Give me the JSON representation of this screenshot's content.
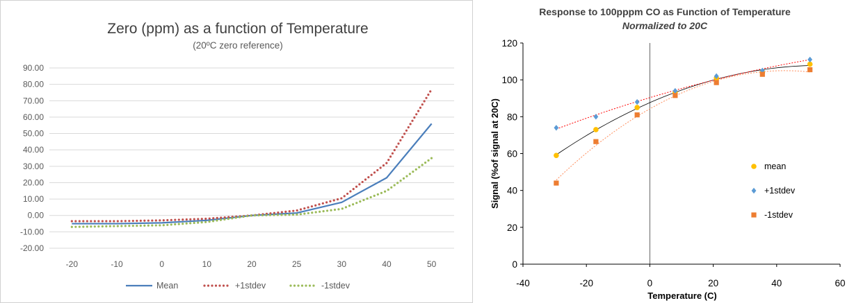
{
  "colors": {
    "mean_line": "#4a7ebb",
    "plus_line": "#c0504d",
    "minus_line": "#9bbb59",
    "grid": "#d9d9d9",
    "tick_text": "#595959",
    "title_text": "#404040",
    "mean_point": "#ffc000",
    "plus_point": "#5b9bd5",
    "minus_point": "#ed7d31",
    "mean_trend": "#000000",
    "plus_trend": "#ff0000",
    "minus_trend": "#ff8c5a"
  },
  "chart_data": [
    {
      "type": "line",
      "title": "Zero (ppm) as a function of Temperature",
      "subtitle": "(20ºC zero reference)",
      "xlabel": "",
      "ylabel": "",
      "categories": [
        "-20",
        "-10",
        "0",
        "10",
        "20",
        "25",
        "30",
        "40",
        "50"
      ],
      "ylim": [
        -20,
        90
      ],
      "yticks": [
        "90.00",
        "80.00",
        "70.00",
        "60.00",
        "50.00",
        "40.00",
        "30.00",
        "20.00",
        "10.00",
        "0.00",
        "-10.00",
        "-20.00"
      ],
      "grid": true,
      "legend_position": "bottom",
      "series": [
        {
          "name": "Mean",
          "style": "solid",
          "values": [
            -5,
            -5,
            -4.5,
            -3,
            0,
            1.5,
            8,
            23,
            56
          ]
        },
        {
          "name": "+1stdev",
          "style": "dotted",
          "values": [
            -3.5,
            -3.5,
            -3,
            -2,
            0,
            3,
            10.5,
            32,
            77
          ]
        },
        {
          "name": "-1stdev",
          "style": "dotted",
          "values": [
            -7,
            -6.5,
            -6,
            -4,
            0,
            0.5,
            4,
            15,
            35
          ]
        }
      ]
    },
    {
      "type": "scatter",
      "title": "Response to 100pppm CO  as Function of Temperature",
      "subtitle": "Normalized to 20C",
      "xlabel": "Temperature (C)",
      "ylabel": "Signal (%of signal at 20C)",
      "xlim": [
        -40,
        60
      ],
      "ylim": [
        0,
        120
      ],
      "xticks": [
        "-40",
        "-20",
        "0",
        "20",
        "40",
        "60"
      ],
      "yticks": [
        "0",
        "20",
        "40",
        "60",
        "80",
        "100",
        "120"
      ],
      "grid": false,
      "legend_position": "right",
      "series": [
        {
          "name": "mean",
          "marker": "circle",
          "x": [
            -29.5,
            -17,
            -4,
            8,
            21,
            35.5,
            50.5
          ],
          "y": [
            59,
            73,
            85,
            93,
            101,
            104,
            108.5
          ]
        },
        {
          "name": "+1stdev",
          "marker": "diamond",
          "x": [
            -29.5,
            -17,
            -4,
            8,
            21,
            35.5,
            50.5
          ],
          "y": [
            74,
            80,
            88,
            94,
            102,
            105,
            111
          ]
        },
        {
          "name": "-1stdev",
          "marker": "square",
          "x": [
            -29.5,
            -17,
            -4,
            8,
            21,
            35.5,
            50.5
          ],
          "y": [
            44,
            66.5,
            81,
            91.5,
            98.5,
            103,
            105.5
          ]
        }
      ]
    }
  ]
}
